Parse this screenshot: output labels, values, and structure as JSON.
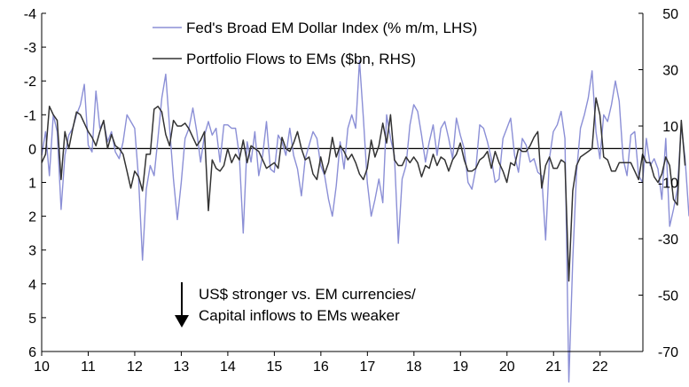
{
  "chart_data": {
    "type": "line",
    "title": "",
    "xlabel": "",
    "x_range": [
      2010,
      2022.92
    ],
    "x_ticks": [
      "10",
      "11",
      "12",
      "13",
      "14",
      "15",
      "16",
      "17",
      "18",
      "19",
      "20",
      "21",
      "22"
    ],
    "y_left": {
      "label": "",
      "inverted": true,
      "range": [
        -4,
        6
      ],
      "ticks": [
        "-4",
        "-3",
        "-2",
        "-1",
        "0",
        "1",
        "2",
        "3",
        "4",
        "5",
        "6"
      ]
    },
    "y_right": {
      "label": "",
      "range": [
        -70,
        50
      ],
      "ticks": [
        "50",
        "30",
        "10",
        "-10",
        "-30",
        "-50",
        "-70"
      ]
    },
    "zero_line": true,
    "grid": false,
    "legend_position": "top-center",
    "series": [
      {
        "name": "Fed's Broad EM Dollar Index (% m/m, LHS)",
        "axis": "left",
        "color": "#8b8fd6",
        "x_start": 2010.0,
        "step": 0.0833,
        "values": [
          0.2,
          -0.5,
          0.8,
          -1.0,
          -0.5,
          1.8,
          0.2,
          -0.4,
          -0.6,
          -1.0,
          -1.3,
          -1.9,
          -0.1,
          0.1,
          -1.7,
          -0.6,
          -0.8,
          -0.2,
          -0.5,
          0.1,
          0.3,
          -0.2,
          -1.0,
          -0.8,
          -0.6,
          0.9,
          3.3,
          1.2,
          0.5,
          0.8,
          -0.3,
          -1.5,
          -2.2,
          -0.6,
          0.9,
          2.1,
          1.0,
          -0.3,
          -0.6,
          -1.2,
          -0.5,
          0.4,
          -0.4,
          -0.8,
          -0.4,
          -0.6,
          0.4,
          -0.7,
          -0.7,
          -0.6,
          -0.6,
          0.2,
          2.5,
          -0.2,
          0.4,
          -0.5,
          0.8,
          0.2,
          -0.8,
          0.6,
          0.7,
          -0.4,
          -0.2,
          0.2,
          -0.6,
          0.2,
          0.6,
          1.4,
          0.3,
          -0.1,
          -0.5,
          -0.3,
          0.5,
          0.8,
          1.5,
          2.0,
          1.1,
          -0.2,
          0.6,
          -0.6,
          -1.0,
          -0.6,
          -2.6,
          -0.9,
          1.0,
          2.0,
          1.5,
          0.9,
          1.6,
          -1.0,
          -0.3,
          0.2,
          2.8,
          0.9,
          0.5,
          -0.7,
          -1.3,
          -1.1,
          -0.4,
          0.4,
          -0.2,
          -0.7,
          0.2,
          -0.6,
          -0.8,
          -0.3,
          0.3,
          -0.9,
          -0.4,
          0.0,
          1.0,
          1.2,
          0.6,
          -0.7,
          -0.6,
          -0.2,
          0.3,
          1.0,
          0.9,
          -0.3,
          -0.6,
          -0.9,
          0.2,
          0.7,
          -0.3,
          -0.1,
          0.4,
          0.3,
          0.7,
          0.8,
          2.7,
          0.3,
          -0.5,
          -0.7,
          -1.1,
          -0.3,
          6.9,
          3.3,
          0.7,
          -0.6,
          -1.0,
          -1.5,
          -2.3,
          -0.5,
          0.3,
          -1.0,
          -0.8,
          -1.3,
          -2.0,
          -1.4,
          0.3,
          0.8,
          -0.4,
          -0.5,
          0.8,
          1.0,
          -0.3,
          0.5,
          0.3,
          0.6,
          1.5,
          -0.3,
          2.3,
          1.8,
          1.2,
          -0.7,
          0.3,
          2.0
        ],
        "note": "approximate monthly values read from plot, positive = US$ stronger (axis inverted)"
      },
      {
        "name": "Portfolio Flows to EMs ($bn, RHS)",
        "axis": "right",
        "color": "#333333",
        "x_start": 2010.0,
        "step": 0.0833,
        "values": [
          -3,
          0,
          17,
          14,
          12,
          -9,
          8,
          2,
          9,
          15,
          14,
          11,
          8,
          6,
          3,
          8,
          12,
          2,
          7,
          3,
          2,
          0,
          -6,
          -12,
          -6,
          -8,
          -13,
          0,
          0,
          16,
          17,
          15,
          7,
          3,
          12,
          10,
          10,
          11,
          9,
          6,
          3,
          5,
          8,
          -20,
          -2,
          -5,
          -6,
          -4,
          2,
          -3,
          0,
          -2,
          5,
          -3,
          3,
          2,
          1,
          -2,
          -5,
          -4,
          -3,
          -5,
          6,
          2,
          1,
          4,
          8,
          2,
          -2,
          -1,
          -7,
          -9,
          -1,
          -7,
          -3,
          6,
          -1,
          3,
          1,
          -2,
          0,
          -3,
          -7,
          -9,
          -5,
          5,
          -1,
          3,
          11,
          4,
          14,
          -2,
          -4,
          -4,
          -1,
          -3,
          -1,
          -3,
          -8,
          -4,
          -5,
          0,
          -4,
          -1,
          -2,
          -6,
          -2,
          0,
          4,
          -2,
          -6,
          -6,
          -5,
          -2,
          -1,
          1,
          -5,
          1,
          -3,
          -6,
          -10,
          -3,
          -4,
          2,
          1,
          1,
          3,
          6,
          8,
          -12,
          -4,
          -1,
          -5,
          -5,
          -2,
          -3,
          -45,
          -13,
          -4,
          -1,
          0,
          1,
          2,
          20,
          14,
          -1,
          -2,
          -6,
          -6,
          -3,
          -3,
          -3,
          -3,
          -6,
          -9,
          0,
          -3,
          -3,
          -8,
          -10,
          -7,
          -1,
          -4,
          -16,
          -18,
          12,
          -4
        ]
      }
    ],
    "annotation": {
      "lines": [
        "US$ stronger vs. EM currencies/",
        "Capital inflows to EMs weaker"
      ],
      "arrow": "down"
    }
  }
}
